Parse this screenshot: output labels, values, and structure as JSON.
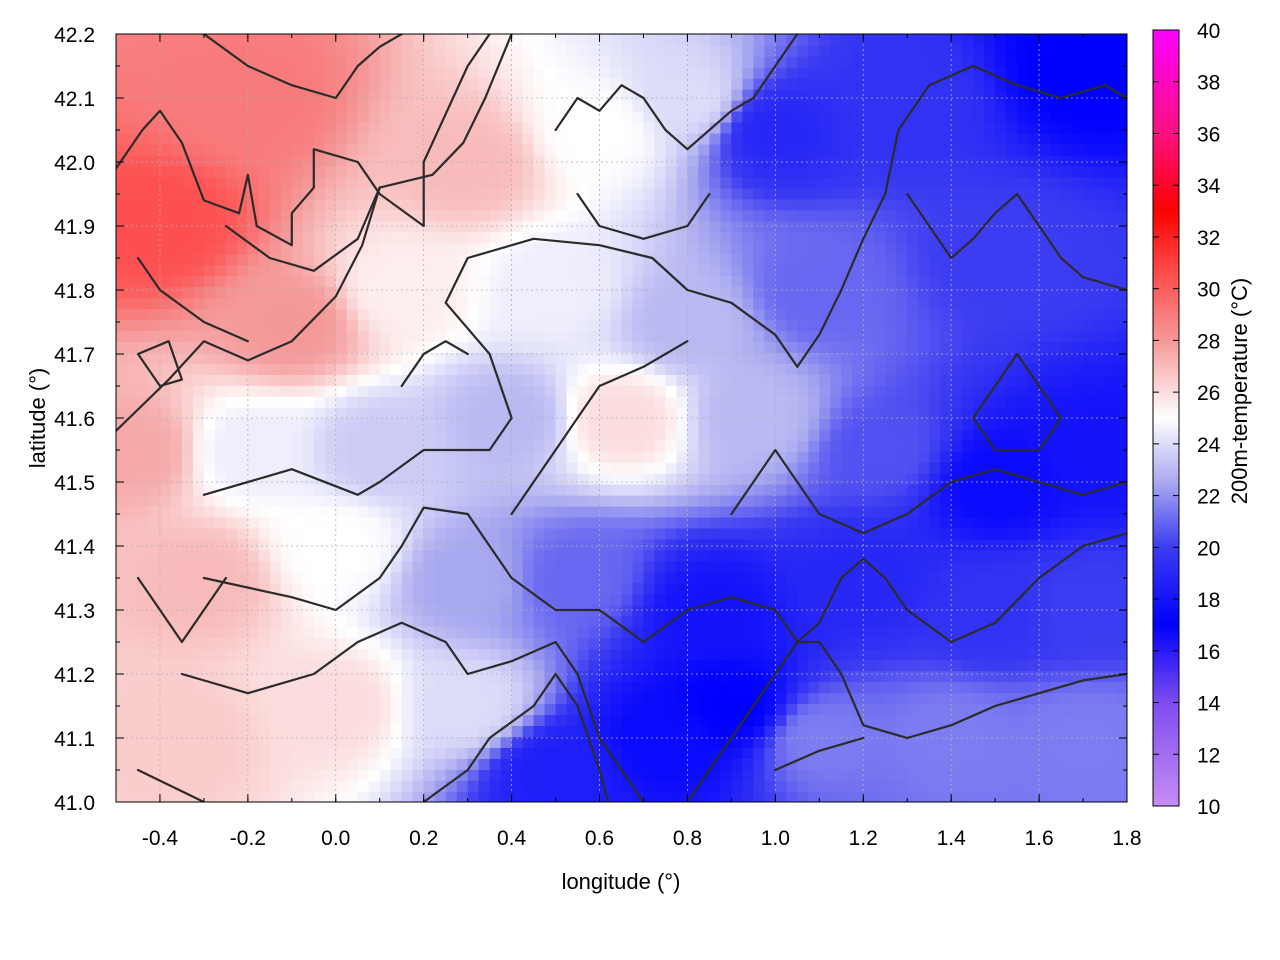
{
  "chart_data": {
    "type": "heatmap",
    "title": "",
    "xlabel": "longitude (°)",
    "ylabel": "latitude (°)",
    "colorbar_label": "200m-temperature (°C)",
    "xlim": [
      -0.5,
      1.8
    ],
    "ylim": [
      41.0,
      42.2
    ],
    "x_ticks": [
      -0.4,
      -0.2,
      0.0,
      0.2,
      0.4,
      0.6,
      0.8,
      1.0,
      1.2,
      1.4,
      1.6,
      1.8
    ],
    "x_tick_labels": [
      "-0.4",
      "-0.2",
      "0.0",
      "0.2",
      "0.4",
      "0.6",
      "0.8",
      "1.0",
      "1.2",
      "1.4",
      "1.6",
      "1.8"
    ],
    "y_ticks": [
      41.0,
      41.1,
      41.2,
      41.3,
      41.4,
      41.5,
      41.6,
      41.7,
      41.8,
      41.9,
      42.0,
      42.1,
      42.2
    ],
    "y_tick_labels": [
      "41.0",
      "41.1",
      "41.2",
      "41.3",
      "41.4",
      "41.5",
      "41.6",
      "41.7",
      "41.8",
      "41.9",
      "42.0",
      "42.1",
      "42.2"
    ],
    "colorbar_range": [
      10,
      40
    ],
    "colorbar_ticks": [
      10,
      12,
      14,
      16,
      18,
      20,
      22,
      24,
      26,
      28,
      30,
      32,
      34,
      36,
      38,
      40
    ],
    "colorbar_tick_labels": [
      "10",
      "12",
      "14",
      "16",
      "18",
      "20",
      "22",
      "24",
      "26",
      "28",
      "30",
      "32",
      "34",
      "36",
      "38",
      "40"
    ],
    "colormap": [
      {
        "value": 10,
        "color": "#c78cf5"
      },
      {
        "value": 14,
        "color": "#7d4cf0"
      },
      {
        "value": 17,
        "color": "#0000ff"
      },
      {
        "value": 20,
        "color": "#3c3cf2"
      },
      {
        "value": 22.5,
        "color": "#a8a8f0"
      },
      {
        "value": 25,
        "color": "#ffffff"
      },
      {
        "value": 28,
        "color": "#f59898"
      },
      {
        "value": 31,
        "color": "#ff4040"
      },
      {
        "value": 33,
        "color": "#ff0000"
      },
      {
        "value": 36,
        "color": "#ff1080"
      },
      {
        "value": 40,
        "color": "#ff00ff"
      }
    ],
    "grid": true,
    "legend": "colorbar-right",
    "field_samples": [
      {
        "lon": -0.4,
        "lat": 41.9,
        "temp": 30.5
      },
      {
        "lon": -0.2,
        "lat": 42.1,
        "temp": 29
      },
      {
        "lon": 0.3,
        "lat": 42.0,
        "temp": 27
      },
      {
        "lon": 0.6,
        "lat": 42.05,
        "temp": 25
      },
      {
        "lon": 0.8,
        "lat": 42.1,
        "temp": 24
      },
      {
        "lon": 1.0,
        "lat": 42.05,
        "temp": 19
      },
      {
        "lon": 1.3,
        "lat": 42.1,
        "temp": 19.5
      },
      {
        "lon": 1.7,
        "lat": 42.15,
        "temp": 17
      },
      {
        "lon": -0.1,
        "lat": 41.75,
        "temp": 28
      },
      {
        "lon": 0.15,
        "lat": 41.8,
        "temp": 25.5
      },
      {
        "lon": 0.5,
        "lat": 41.8,
        "temp": 24.5
      },
      {
        "lon": 0.8,
        "lat": 41.75,
        "temp": 23
      },
      {
        "lon": 1.1,
        "lat": 41.8,
        "temp": 21
      },
      {
        "lon": 1.5,
        "lat": 41.85,
        "temp": 20
      },
      {
        "lon": -0.45,
        "lat": 41.55,
        "temp": 27.5
      },
      {
        "lon": -0.2,
        "lat": 41.55,
        "temp": 24.5
      },
      {
        "lon": 0.1,
        "lat": 41.55,
        "temp": 23.5
      },
      {
        "lon": 0.4,
        "lat": 41.6,
        "temp": 23
      },
      {
        "lon": 0.65,
        "lat": 41.6,
        "temp": 26
      },
      {
        "lon": 0.95,
        "lat": 41.6,
        "temp": 23
      },
      {
        "lon": 1.25,
        "lat": 41.55,
        "temp": 20.5
      },
      {
        "lon": 1.5,
        "lat": 41.5,
        "temp": 17.5
      },
      {
        "lon": 1.75,
        "lat": 41.55,
        "temp": 18
      },
      {
        "lon": -0.3,
        "lat": 41.35,
        "temp": 27
      },
      {
        "lon": 0.0,
        "lat": 41.4,
        "temp": 25
      },
      {
        "lon": 0.3,
        "lat": 41.35,
        "temp": 22.5
      },
      {
        "lon": 0.55,
        "lat": 41.35,
        "temp": 21
      },
      {
        "lon": 0.85,
        "lat": 41.3,
        "temp": 18
      },
      {
        "lon": 1.2,
        "lat": 41.35,
        "temp": 19
      },
      {
        "lon": 1.5,
        "lat": 41.3,
        "temp": 19.5
      },
      {
        "lon": 1.7,
        "lat": 41.3,
        "temp": 20
      },
      {
        "lon": -0.35,
        "lat": 41.1,
        "temp": 26.5
      },
      {
        "lon": 0.0,
        "lat": 41.15,
        "temp": 26
      },
      {
        "lon": 0.3,
        "lat": 41.15,
        "temp": 24
      },
      {
        "lon": 0.5,
        "lat": 41.05,
        "temp": 18.5
      },
      {
        "lon": 0.75,
        "lat": 41.1,
        "temp": 17.5
      },
      {
        "lon": 0.9,
        "lat": 41.15,
        "temp": 17
      },
      {
        "lon": 1.1,
        "lat": 41.1,
        "temp": 21.5
      },
      {
        "lon": 1.4,
        "lat": 41.1,
        "temp": 21.5
      },
      {
        "lon": 1.7,
        "lat": 41.1,
        "temp": 21.5
      }
    ],
    "contour_lines": [
      [
        [
          -0.5,
          41.58
        ],
        [
          -0.38,
          41.66
        ],
        [
          -0.3,
          41.72
        ],
        [
          -0.2,
          41.69
        ],
        [
          -0.1,
          41.72
        ],
        [
          0.0,
          41.79
        ],
        [
          0.06,
          41.87
        ],
        [
          0.1,
          41.96
        ],
        [
          0.22,
          41.98
        ],
        [
          0.29,
          42.03
        ],
        [
          0.34,
          42.1
        ],
        [
          0.4,
          42.2
        ]
      ],
      [
        [
          -0.5,
          41.99
        ],
        [
          -0.44,
          42.05
        ],
        [
          -0.4,
          42.08
        ],
        [
          -0.35,
          42.03
        ],
        [
          -0.3,
          41.94
        ],
        [
          -0.22,
          41.92
        ],
        [
          -0.2,
          41.98
        ],
        [
          -0.18,
          41.9
        ],
        [
          -0.1,
          41.87
        ],
        [
          -0.1,
          41.92
        ],
        [
          -0.05,
          41.96
        ],
        [
          -0.05,
          42.02
        ],
        [
          0.05,
          42.0
        ],
        [
          0.1,
          41.95
        ],
        [
          0.2,
          41.9
        ],
        [
          0.2,
          42.0
        ],
        [
          0.3,
          42.15
        ],
        [
          0.35,
          42.2
        ]
      ],
      [
        [
          -0.3,
          42.2
        ],
        [
          -0.2,
          42.15
        ],
        [
          -0.1,
          42.12
        ],
        [
          0.0,
          42.1
        ],
        [
          0.05,
          42.15
        ],
        [
          0.1,
          42.18
        ],
        [
          0.15,
          42.2
        ]
      ],
      [
        [
          -0.25,
          41.9
        ],
        [
          -0.15,
          41.85
        ],
        [
          -0.05,
          41.83
        ],
        [
          0.05,
          41.88
        ],
        [
          0.1,
          41.96
        ]
      ],
      [
        [
          -0.45,
          41.85
        ],
        [
          -0.4,
          41.8
        ],
        [
          -0.3,
          41.75
        ],
        [
          -0.2,
          41.72
        ]
      ],
      [
        [
          -0.45,
          41.7
        ],
        [
          -0.4,
          41.65
        ],
        [
          -0.35,
          41.66
        ],
        [
          -0.38,
          41.72
        ],
        [
          -0.45,
          41.7
        ]
      ],
      [
        [
          -0.3,
          41.48
        ],
        [
          -0.1,
          41.52
        ],
        [
          0.05,
          41.48
        ],
        [
          0.1,
          41.5
        ],
        [
          0.2,
          41.55
        ],
        [
          0.35,
          41.55
        ],
        [
          0.4,
          41.6
        ],
        [
          0.35,
          41.7
        ],
        [
          0.25,
          41.78
        ],
        [
          0.3,
          41.85
        ],
        [
          0.45,
          41.88
        ],
        [
          0.6,
          41.87
        ],
        [
          0.72,
          41.85
        ],
        [
          0.8,
          41.8
        ],
        [
          0.9,
          41.78
        ],
        [
          1.0,
          41.73
        ],
        [
          1.05,
          41.68
        ],
        [
          1.1,
          41.73
        ],
        [
          1.15,
          41.8
        ],
        [
          1.2,
          41.88
        ],
        [
          1.25,
          41.95
        ],
        [
          1.28,
          42.05
        ],
        [
          1.35,
          42.12
        ],
        [
          1.45,
          42.15
        ],
        [
          1.55,
          42.12
        ],
        [
          1.65,
          42.1
        ],
        [
          1.75,
          42.12
        ],
        [
          1.8,
          42.1
        ]
      ],
      [
        [
          -0.3,
          41.35
        ],
        [
          -0.1,
          41.32
        ],
        [
          0.0,
          41.3
        ],
        [
          0.1,
          41.35
        ],
        [
          0.15,
          41.4
        ],
        [
          0.2,
          41.46
        ],
        [
          0.3,
          41.45
        ],
        [
          0.35,
          41.4
        ],
        [
          0.4,
          41.35
        ],
        [
          0.5,
          41.3
        ],
        [
          0.6,
          41.3
        ],
        [
          0.7,
          41.25
        ],
        [
          0.8,
          41.3
        ],
        [
          0.9,
          41.32
        ],
        [
          1.0,
          41.3
        ],
        [
          1.05,
          41.25
        ],
        [
          1.1,
          41.28
        ],
        [
          1.15,
          41.35
        ],
        [
          1.2,
          41.38
        ],
        [
          1.25,
          41.35
        ],
        [
          1.3,
          41.3
        ],
        [
          1.4,
          41.25
        ],
        [
          1.5,
          41.28
        ],
        [
          1.6,
          41.35
        ],
        [
          1.7,
          41.4
        ],
        [
          1.8,
          41.42
        ]
      ],
      [
        [
          -0.35,
          41.2
        ],
        [
          -0.2,
          41.17
        ],
        [
          -0.05,
          41.2
        ],
        [
          0.05,
          41.25
        ],
        [
          0.15,
          41.28
        ],
        [
          0.25,
          41.25
        ],
        [
          0.3,
          41.2
        ],
        [
          0.4,
          41.22
        ],
        [
          0.5,
          41.25
        ],
        [
          0.55,
          41.2
        ],
        [
          0.6,
          41.1
        ],
        [
          0.65,
          41.05
        ],
        [
          0.7,
          41.0
        ]
      ],
      [
        [
          -0.45,
          41.05
        ],
        [
          -0.3,
          41.0
        ]
      ],
      [
        [
          -0.45,
          41.35
        ],
        [
          -0.4,
          41.3
        ],
        [
          -0.35,
          41.25
        ],
        [
          -0.3,
          41.3
        ],
        [
          -0.25,
          41.35
        ]
      ],
      [
        [
          0.2,
          41.0
        ],
        [
          0.3,
          41.05
        ],
        [
          0.35,
          41.1
        ],
        [
          0.45,
          41.15
        ],
        [
          0.5,
          41.2
        ],
        [
          0.55,
          41.15
        ],
        [
          0.6,
          41.05
        ],
        [
          0.62,
          41.0
        ]
      ],
      [
        [
          0.8,
          41.0
        ],
        [
          0.85,
          41.05
        ],
        [
          0.9,
          41.1
        ],
        [
          0.95,
          41.15
        ],
        [
          1.0,
          41.2
        ],
        [
          1.05,
          41.25
        ],
        [
          1.1,
          41.25
        ],
        [
          1.15,
          41.2
        ],
        [
          1.2,
          41.12
        ],
        [
          1.3,
          41.1
        ],
        [
          1.4,
          41.12
        ],
        [
          1.5,
          41.15
        ],
        [
          1.6,
          41.17
        ],
        [
          1.7,
          41.19
        ],
        [
          1.8,
          41.2
        ]
      ],
      [
        [
          1.0,
          41.05
        ],
        [
          1.1,
          41.08
        ],
        [
          1.2,
          41.1
        ]
      ],
      [
        [
          1.5,
          41.65
        ],
        [
          1.55,
          41.7
        ],
        [
          1.6,
          41.65
        ],
        [
          1.65,
          41.6
        ],
        [
          1.6,
          41.55
        ],
        [
          1.5,
          41.55
        ],
        [
          1.45,
          41.6
        ],
        [
          1.5,
          41.65
        ]
      ],
      [
        [
          1.3,
          41.95
        ],
        [
          1.35,
          41.9
        ],
        [
          1.4,
          41.85
        ],
        [
          1.45,
          41.88
        ],
        [
          1.5,
          41.92
        ],
        [
          1.55,
          41.95
        ],
        [
          1.6,
          41.9
        ],
        [
          1.65,
          41.85
        ],
        [
          1.7,
          41.82
        ],
        [
          1.8,
          41.8
        ]
      ],
      [
        [
          0.5,
          42.05
        ],
        [
          0.55,
          42.1
        ],
        [
          0.6,
          42.08
        ],
        [
          0.65,
          42.12
        ],
        [
          0.7,
          42.1
        ],
        [
          0.75,
          42.05
        ],
        [
          0.8,
          42.02
        ],
        [
          0.85,
          42.05
        ],
        [
          0.9,
          42.08
        ],
        [
          0.95,
          42.1
        ],
        [
          1.0,
          42.15
        ],
        [
          1.05,
          42.2
        ]
      ],
      [
        [
          0.55,
          41.95
        ],
        [
          0.6,
          41.9
        ],
        [
          0.7,
          41.88
        ],
        [
          0.8,
          41.9
        ],
        [
          0.85,
          41.95
        ]
      ],
      [
        [
          0.4,
          41.45
        ],
        [
          0.45,
          41.5
        ],
        [
          0.5,
          41.55
        ],
        [
          0.55,
          41.6
        ],
        [
          0.6,
          41.65
        ],
        [
          0.7,
          41.68
        ],
        [
          0.75,
          41.7
        ],
        [
          0.8,
          41.72
        ]
      ],
      [
        [
          0.15,
          41.65
        ],
        [
          0.2,
          41.7
        ],
        [
          0.25,
          41.72
        ],
        [
          0.3,
          41.7
        ]
      ],
      [
        [
          0.9,
          41.45
        ],
        [
          0.95,
          41.5
        ],
        [
          1.0,
          41.55
        ],
        [
          1.05,
          41.5
        ],
        [
          1.1,
          41.45
        ],
        [
          1.2,
          41.42
        ],
        [
          1.3,
          41.45
        ],
        [
          1.4,
          41.5
        ],
        [
          1.5,
          41.52
        ],
        [
          1.6,
          41.5
        ],
        [
          1.7,
          41.48
        ],
        [
          1.8,
          41.5
        ]
      ]
    ]
  }
}
